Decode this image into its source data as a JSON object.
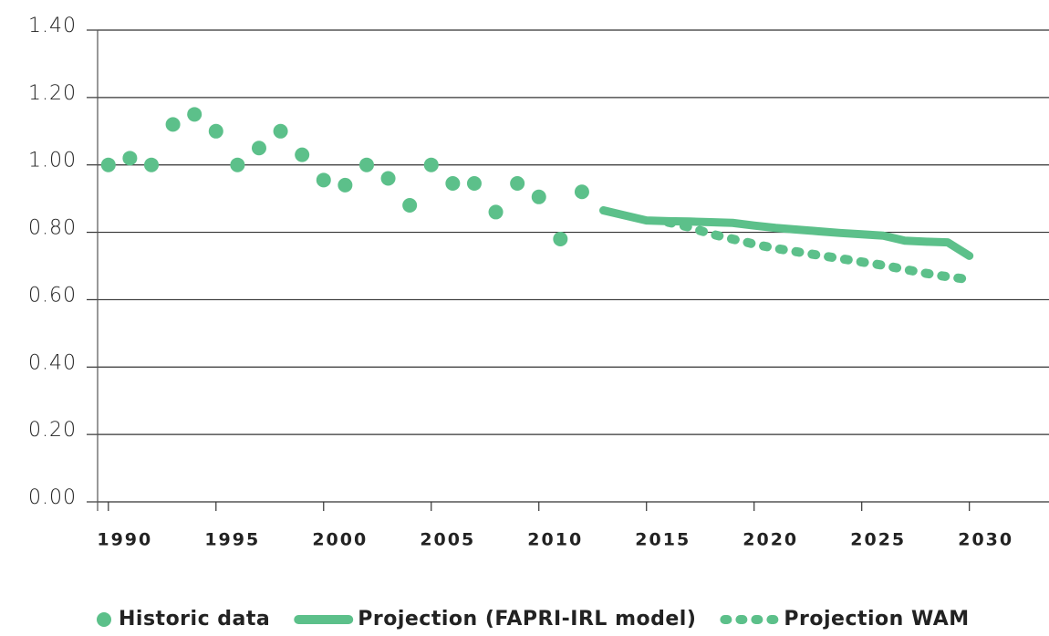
{
  "chart_data": {
    "type": "line",
    "x": [
      1990,
      1991,
      1992,
      1993,
      1994,
      1995,
      1996,
      1997,
      1998,
      1999,
      2000,
      2001,
      2002,
      2003,
      2004,
      2005,
      2006,
      2007,
      2008,
      2009,
      2010,
      2011,
      2012,
      2013,
      2014,
      2015,
      2016,
      2017,
      2018,
      2019,
      2020,
      2021,
      2022,
      2023,
      2024,
      2025,
      2026,
      2027,
      2028,
      2029,
      2030
    ],
    "series": [
      {
        "name": "Historic data",
        "color": "#5cc08a",
        "style": "dots",
        "values": [
          1.0,
          1.02,
          1.0,
          1.12,
          1.15,
          1.1,
          1.0,
          1.05,
          1.1,
          1.03,
          0.955,
          0.94,
          1.0,
          0.96,
          0.88,
          1.0,
          0.945,
          0.945,
          0.86,
          0.945,
          0.905,
          0.78,
          0.92,
          null,
          null,
          null,
          null,
          null,
          null,
          null,
          null,
          null,
          null,
          null,
          null,
          null,
          null,
          null,
          null,
          null,
          null
        ]
      },
      {
        "name": "Projection (FAPRI-IRL model)",
        "color": "#5cc08a",
        "style": "solid",
        "values": [
          null,
          null,
          null,
          null,
          null,
          null,
          null,
          null,
          null,
          null,
          null,
          null,
          null,
          null,
          null,
          null,
          null,
          null,
          null,
          null,
          null,
          null,
          null,
          0.865,
          0.85,
          0.835,
          0.833,
          0.832,
          0.83,
          0.828,
          0.82,
          0.813,
          0.808,
          0.803,
          0.798,
          0.794,
          0.79,
          0.775,
          0.772,
          0.77,
          0.73
        ]
      },
      {
        "name": "Projection WAM",
        "color": "#5cc08a",
        "style": "dotted",
        "values": [
          null,
          null,
          null,
          null,
          null,
          null,
          null,
          null,
          null,
          null,
          null,
          null,
          null,
          null,
          null,
          null,
          null,
          null,
          null,
          null,
          null,
          null,
          null,
          null,
          null,
          null,
          0.83,
          0.815,
          0.795,
          0.78,
          0.765,
          0.752,
          0.742,
          0.732,
          0.722,
          0.712,
          0.702,
          0.69,
          0.678,
          0.668,
          0.66
        ]
      }
    ],
    "xlim": [
      1989.5,
      2033.7
    ],
    "xticks": [
      1990,
      1995,
      2000,
      2005,
      2010,
      2015,
      2020,
      2025,
      2030
    ],
    "ylim": [
      0,
      1.4
    ],
    "yticks": [
      {
        "value": 0,
        "label": "0.00"
      },
      {
        "value": 0.2,
        "label": "0.20"
      },
      {
        "value": 0.4,
        "label": "0.40"
      },
      {
        "value": 0.6,
        "label": "0.60"
      },
      {
        "value": 0.8,
        "label": "0.80"
      },
      {
        "value": 1.0,
        "label": "1.00"
      },
      {
        "value": 1.2,
        "label": "1.20"
      },
      {
        "value": 1.4,
        "label": "1.40"
      }
    ],
    "grid": true,
    "legend": "bottom"
  }
}
